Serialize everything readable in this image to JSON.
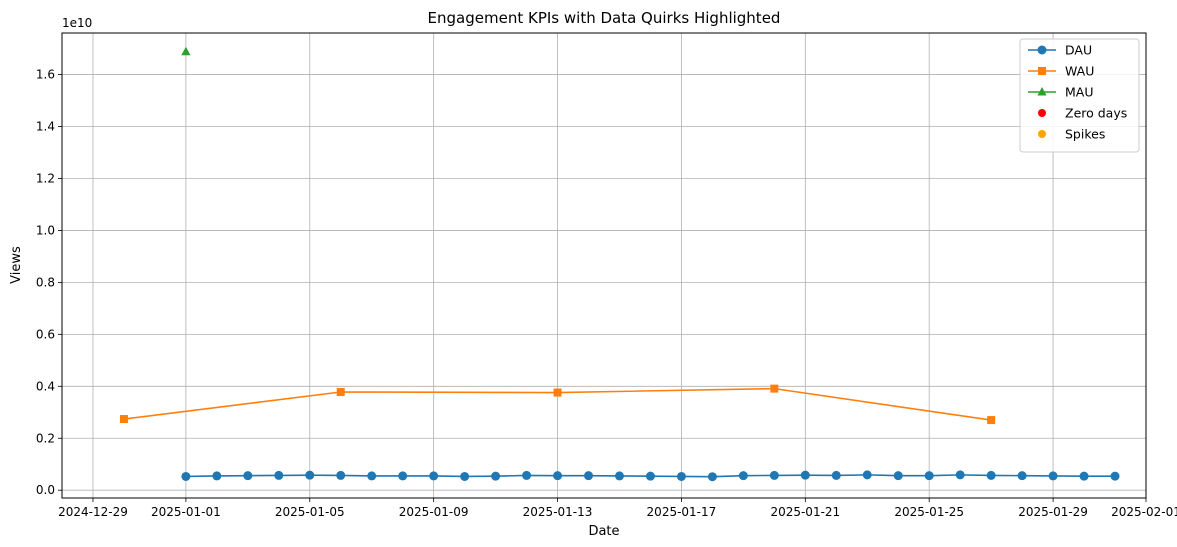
{
  "chart_data": {
    "type": "line",
    "title": "Engagement KPIs with Data Quirks Highlighted",
    "xlabel": "Date",
    "ylabel": "Views",
    "y_offset_label": "1e10",
    "y_multiplier": 10000000000,
    "xlim": [
      "2024-12-28",
      "2025-02-01"
    ],
    "ylim": [
      -0.03,
      1.76
    ],
    "x_ticks": [
      "2024-12-29",
      "2025-01-01",
      "2025-01-05",
      "2025-01-09",
      "2025-01-13",
      "2025-01-17",
      "2025-01-21",
      "2025-01-25",
      "2025-01-29",
      "2025-02-01"
    ],
    "y_ticks": [
      "0.0",
      "0.2",
      "0.4",
      "0.6",
      "0.8",
      "1.0",
      "1.2",
      "1.4",
      "1.6"
    ],
    "grid": true,
    "legend_position": "top-right",
    "series": [
      {
        "name": "DAU",
        "color": "#1f77b4",
        "marker": "circle",
        "line": true,
        "points": [
          [
            "2025-01-01",
            0.053
          ],
          [
            "2025-01-02",
            0.055
          ],
          [
            "2025-01-03",
            0.056
          ],
          [
            "2025-01-04",
            0.057
          ],
          [
            "2025-01-05",
            0.058
          ],
          [
            "2025-01-06",
            0.057
          ],
          [
            "2025-01-07",
            0.055
          ],
          [
            "2025-01-08",
            0.055
          ],
          [
            "2025-01-09",
            0.055
          ],
          [
            "2025-01-10",
            0.053
          ],
          [
            "2025-01-11",
            0.054
          ],
          [
            "2025-01-12",
            0.057
          ],
          [
            "2025-01-13",
            0.056
          ],
          [
            "2025-01-14",
            0.056
          ],
          [
            "2025-01-15",
            0.055
          ],
          [
            "2025-01-16",
            0.054
          ],
          [
            "2025-01-17",
            0.053
          ],
          [
            "2025-01-18",
            0.052
          ],
          [
            "2025-01-19",
            0.056
          ],
          [
            "2025-01-20",
            0.057
          ],
          [
            "2025-01-21",
            0.058
          ],
          [
            "2025-01-22",
            0.057
          ],
          [
            "2025-01-23",
            0.059
          ],
          [
            "2025-01-24",
            0.056
          ],
          [
            "2025-01-25",
            0.056
          ],
          [
            "2025-01-26",
            0.059
          ],
          [
            "2025-01-27",
            0.057
          ],
          [
            "2025-01-28",
            0.056
          ],
          [
            "2025-01-29",
            0.055
          ],
          [
            "2025-01-30",
            0.054
          ],
          [
            "2025-01-31",
            0.054
          ]
        ]
      },
      {
        "name": "WAU",
        "color": "#ff7f0e",
        "marker": "square",
        "line": true,
        "points": [
          [
            "2024-12-30",
            0.274
          ],
          [
            "2025-01-06",
            0.378
          ],
          [
            "2025-01-13",
            0.376
          ],
          [
            "2025-01-20",
            0.391
          ],
          [
            "2025-01-27",
            0.27
          ]
        ]
      },
      {
        "name": "MAU",
        "color": "#2ca02c",
        "marker": "triangle",
        "line": true,
        "points": [
          [
            "2025-01-01",
            1.688
          ]
        ]
      },
      {
        "name": "Zero days",
        "color": "#ff0000",
        "marker": "dot",
        "line": false,
        "points": []
      },
      {
        "name": "Spikes",
        "color": "#ffa500",
        "marker": "dot",
        "line": false,
        "points": []
      }
    ]
  }
}
